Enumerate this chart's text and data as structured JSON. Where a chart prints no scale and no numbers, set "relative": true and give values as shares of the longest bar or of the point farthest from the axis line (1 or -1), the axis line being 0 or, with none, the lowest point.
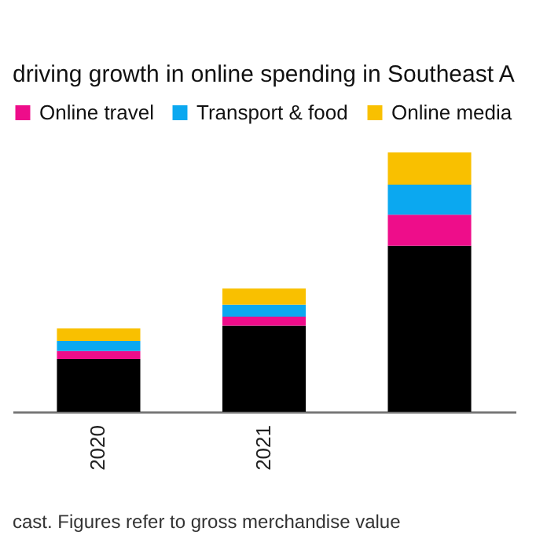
{
  "chart_data": {
    "type": "bar",
    "title": "driving growth in online spending in Southeast A",
    "categories": [
      "2020",
      "2021",
      null
    ],
    "stacked": true,
    "relative": true,
    "legend": "top",
    "series": [
      {
        "color": "#000000",
        "values": [
          0.203,
          0.332,
          0.64
        ]
      },
      {
        "name": "Online travel",
        "color": "#ee0d8a",
        "values": [
          0.031,
          0.035,
          0.12
        ]
      },
      {
        "name": "Transport & food",
        "color": "#0ba8f0",
        "values": [
          0.039,
          0.046,
          0.116
        ]
      },
      {
        "name": "Online media",
        "color": "#f9c000",
        "values": [
          0.048,
          0.062,
          0.124
        ]
      }
    ],
    "annotations": [
      "cast. Figures refer to gross merchandise value"
    ]
  }
}
